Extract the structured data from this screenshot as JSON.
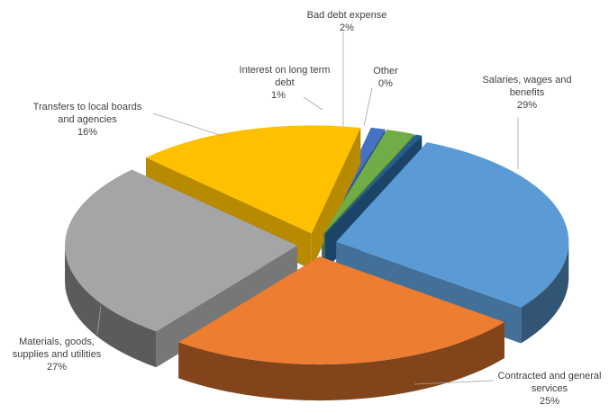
{
  "chart_data": {
    "type": "pie",
    "style": "3d-exploded",
    "slices": [
      {
        "label": "Salaries, wages and benefits",
        "percent_label": "29%",
        "value": 29,
        "color": "#5b9bd5"
      },
      {
        "label": "Contracted and general services",
        "percent_label": "25%",
        "value": 25,
        "color": "#ed7d31"
      },
      {
        "label": "Materials, goods, supplies and utilities",
        "percent_label": "27%",
        "value": 27,
        "color": "#a5a5a5"
      },
      {
        "label": "Transfers to local boards and agencies",
        "percent_label": "16%",
        "value": 16,
        "color": "#ffc000"
      },
      {
        "label": "Interest on long term debt",
        "percent_label": "1%",
        "value": 1,
        "color": "#4472c4"
      },
      {
        "label": "Bad debt expense",
        "percent_label": "2%",
        "value": 2,
        "color": "#70ad47"
      },
      {
        "label": "Other",
        "percent_label": "0%",
        "value": 0,
        "color": "#255e91"
      }
    ]
  },
  "labels": {
    "salaries": {
      "line1": "Salaries, wages and",
      "line2": "benefits",
      "pct": "29%"
    },
    "contracted": {
      "line1": "Contracted and general",
      "line2": "services",
      "pct": "25%"
    },
    "materials": {
      "line1": "Materials, goods,",
      "line2": "supplies and utilities",
      "pct": "27%"
    },
    "transfers": {
      "line1": "Transfers to local boards",
      "line2": "and agencies",
      "pct": "16%"
    },
    "interest": {
      "line1": "Interest on long term",
      "line2": "debt",
      "pct": "1%"
    },
    "baddebt": {
      "line1": "Bad debt expense",
      "pct": "2%"
    },
    "other": {
      "line1": "Other",
      "pct": "0%"
    }
  }
}
